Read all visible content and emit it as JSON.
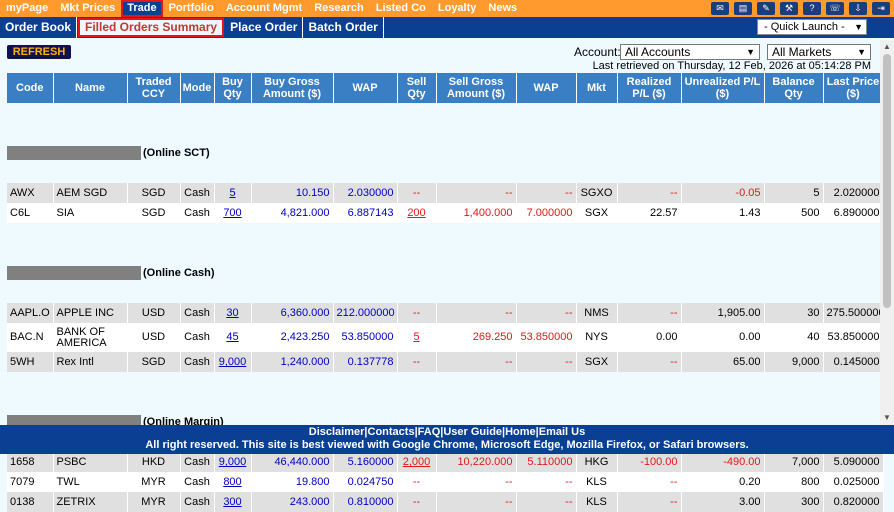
{
  "topnav": {
    "items": [
      "myPage",
      "Mkt Prices",
      "Trade",
      "Portfolio",
      "Account Mgmt",
      "Research",
      "Listed Co",
      "Loyalty",
      "News"
    ],
    "active": "Trade",
    "icons": [
      "message-icon",
      "news-icon",
      "edit-icon",
      "tools-icon",
      "help-icon",
      "contact-icon",
      "download-icon",
      "logout-icon"
    ]
  },
  "subnav": {
    "tabs": [
      "Order Book",
      "Filled Orders Summary",
      "Place Order",
      "Batch Order"
    ],
    "active": "Filled Orders Summary",
    "quick_launch": "- Quick Launch -"
  },
  "toolbar": {
    "refresh": "REFRESH",
    "account_label": "Account:",
    "account_value": "All Accounts",
    "market_value": "All Markets",
    "retrieved": "Last retrieved on Thursday, 12 Feb, 2026 at 05:14:28 PM"
  },
  "table": {
    "headers": [
      "Code",
      "Name",
      "Traded CCY",
      "Mode",
      "Buy Qty",
      "Buy Gross Amount ($)",
      "WAP",
      "Sell Qty",
      "Sell Gross Amount ($)",
      "WAP",
      "Mkt",
      "Realized P/L ($)",
      "Unrealized P/L ($)",
      "Balance Qty",
      "Last Price ($)"
    ],
    "sections": [
      {
        "label": "(Online SCT)",
        "rows": [
          [
            "AWX",
            "AEM SGD",
            "SGD",
            "Cash",
            "5",
            "10.150",
            "2.030000",
            "--",
            "--",
            "--",
            "SGXO",
            "--",
            "-0.05",
            "5",
            "2.020000"
          ],
          [
            "C6L",
            "SIA",
            "SGD",
            "Cash",
            "700",
            "4,821.000",
            "6.887143",
            "200",
            "1,400.000",
            "7.000000",
            "SGX",
            "22.57",
            "1.43",
            "500",
            "6.890000"
          ]
        ]
      },
      {
        "label": "(Online Cash)",
        "rows": [
          [
            "AAPL.O",
            "APPLE INC",
            "USD",
            "Cash",
            "30",
            "6,360.000",
            "212.000000",
            "--",
            "--",
            "--",
            "NMS",
            "--",
            "1,905.00",
            "30",
            "275.500000"
          ],
          [
            "BAC.N",
            "BANK OF AMERICA",
            "USD",
            "Cash",
            "45",
            "2,423.250",
            "53.850000",
            "5",
            "269.250",
            "53.850000",
            "NYS",
            "0.00",
            "0.00",
            "40",
            "53.850000"
          ],
          [
            "5WH",
            "Rex Intl",
            "SGD",
            "Cash",
            "9,000",
            "1,240.000",
            "0.137778",
            "--",
            "--",
            "--",
            "SGX",
            "--",
            "65.00",
            "9,000",
            "0.145000"
          ]
        ]
      },
      {
        "label": "(Online Margin)",
        "rows": [
          [
            "1658",
            "PSBC",
            "HKD",
            "Cash",
            "9,000",
            "46,440.000",
            "5.160000",
            "2,000",
            "10,220.000",
            "5.110000",
            "HKG",
            "-100.00",
            "-490.00",
            "7,000",
            "5.090000"
          ],
          [
            "7079",
            "TWL",
            "MYR",
            "Cash",
            "800",
            "19.800",
            "0.024750",
            "--",
            "--",
            "--",
            "KLS",
            "--",
            "0.20",
            "800",
            "0.025000"
          ],
          [
            "0138",
            "ZETRIX",
            "MYR",
            "Cash",
            "300",
            "243.000",
            "0.810000",
            "--",
            "--",
            "--",
            "KLS",
            "--",
            "3.00",
            "300",
            "0.820000"
          ]
        ]
      }
    ]
  },
  "footer": {
    "links": [
      "Disclaimer",
      "Contacts",
      "FAQ",
      "User Guide",
      "Home",
      "Email Us"
    ],
    "text": "All right reserved. This site is best viewed with Google Chrome, Microsoft Edge, Mozilla Firefox, or Safari browsers."
  },
  "colors": {
    "topnav": "#ff9a2e",
    "subnav": "#0a3f93",
    "header": "#3a7fc4",
    "page_bg": "#eefaff",
    "negative": "#e01818",
    "link": "#0000c0"
  }
}
